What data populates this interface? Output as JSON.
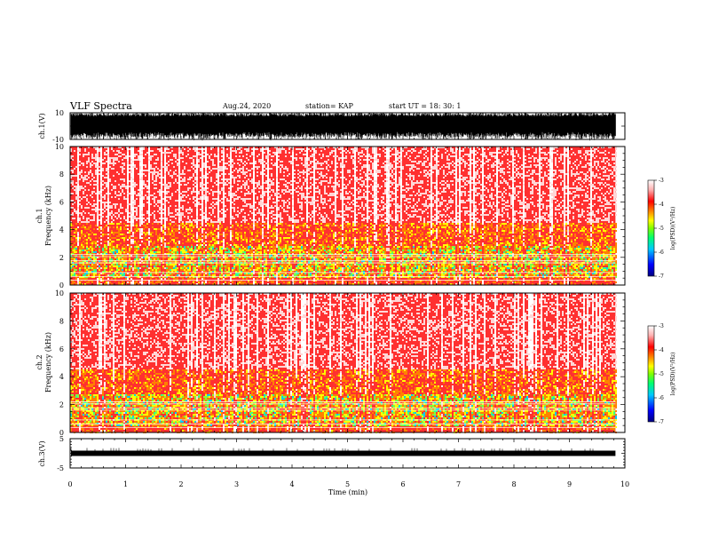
{
  "header": {
    "title": "VLF  Spectra",
    "date": "Aug.24, 2020",
    "station": "station= KAP",
    "start": "start  UT  =   18: 30: 1"
  },
  "chart_data": [
    {
      "type": "line",
      "name": "ch1-waveform",
      "ylabel": "ch.1(V)",
      "ylim": [
        -10,
        10
      ],
      "ytick_labels": [
        "10",
        "-10"
      ],
      "xlim": [
        0,
        10
      ]
    },
    {
      "type": "heatmap",
      "name": "ch1-spectrogram",
      "ylabel": "ch.1\nFrequency  (kHz)",
      "ylim": [
        0,
        10
      ],
      "ytick_labels": [
        "0",
        "2",
        "4",
        "6",
        "8",
        "10"
      ],
      "xlim": [
        0,
        10
      ],
      "data_end_min": 9.83,
      "colorbar": {
        "label": "log(PSD)(V²/Hz)",
        "ticks": [
          "-3",
          "-4",
          "-5",
          "-6",
          "-7"
        ]
      }
    },
    {
      "type": "heatmap",
      "name": "ch2-spectrogram",
      "ylabel": "ch.2\nFrequency  (kHz)",
      "ylim": [
        0,
        10
      ],
      "ytick_labels": [
        "0",
        "2",
        "4",
        "6",
        "8",
        "10"
      ],
      "xlim": [
        0,
        10
      ],
      "data_end_min": 9.83,
      "colorbar": {
        "label": "log(PSD)(V²/Hz)",
        "ticks": [
          "-3",
          "-4",
          "-5",
          "-6",
          "-7"
        ]
      }
    },
    {
      "type": "line",
      "name": "ch3-waveform",
      "ylabel": "ch.3(V)",
      "ylim": [
        -5,
        5
      ],
      "ytick_labels": [
        "5",
        "0",
        "-5"
      ],
      "xlim": [
        0,
        10
      ],
      "xlabel": "Time  (min)",
      "xtick_labels": [
        "0",
        "1",
        "2",
        "3",
        "4",
        "5",
        "6",
        "7",
        "8",
        "9",
        "10"
      ]
    }
  ],
  "colors": {
    "axis": "#000000",
    "colormap": [
      "#0000a0",
      "#0000ff",
      "#00c8ff",
      "#00ff80",
      "#7cff00",
      "#ffff00",
      "#ff8000",
      "#ff0000",
      "#ffd0d0",
      "#ffffff"
    ]
  }
}
